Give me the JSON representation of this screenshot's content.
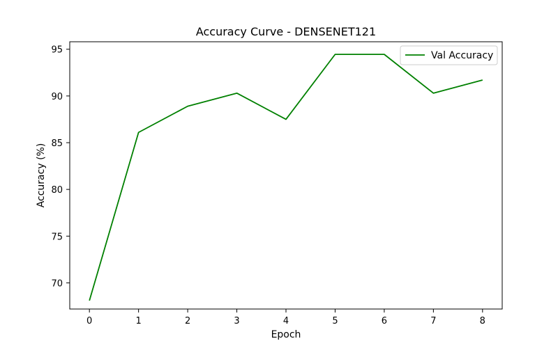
{
  "chart_data": {
    "type": "line",
    "title": "Accuracy Curve - DENSENET121",
    "xlabel": "Epoch",
    "ylabel": "Accuracy (%)",
    "x": [
      0,
      1,
      2,
      3,
      4,
      5,
      6,
      7,
      8
    ],
    "series": [
      {
        "name": "Val Accuracy",
        "color": "#008000",
        "values": [
          68.1,
          86.1,
          88.9,
          90.3,
          87.5,
          94.45,
          94.45,
          90.3,
          91.7
        ]
      }
    ],
    "xlim": [
      -0.4,
      8.4
    ],
    "ylim": [
      67.2,
      95.8
    ],
    "xticks": [
      "0",
      "1",
      "2",
      "3",
      "4",
      "5",
      "6",
      "7",
      "8"
    ],
    "yticks": [
      "70",
      "75",
      "80",
      "85",
      "90",
      "95"
    ],
    "ytick_values": [
      70,
      75,
      80,
      85,
      90,
      95
    ],
    "grid": false,
    "legend_position": "top-right"
  }
}
